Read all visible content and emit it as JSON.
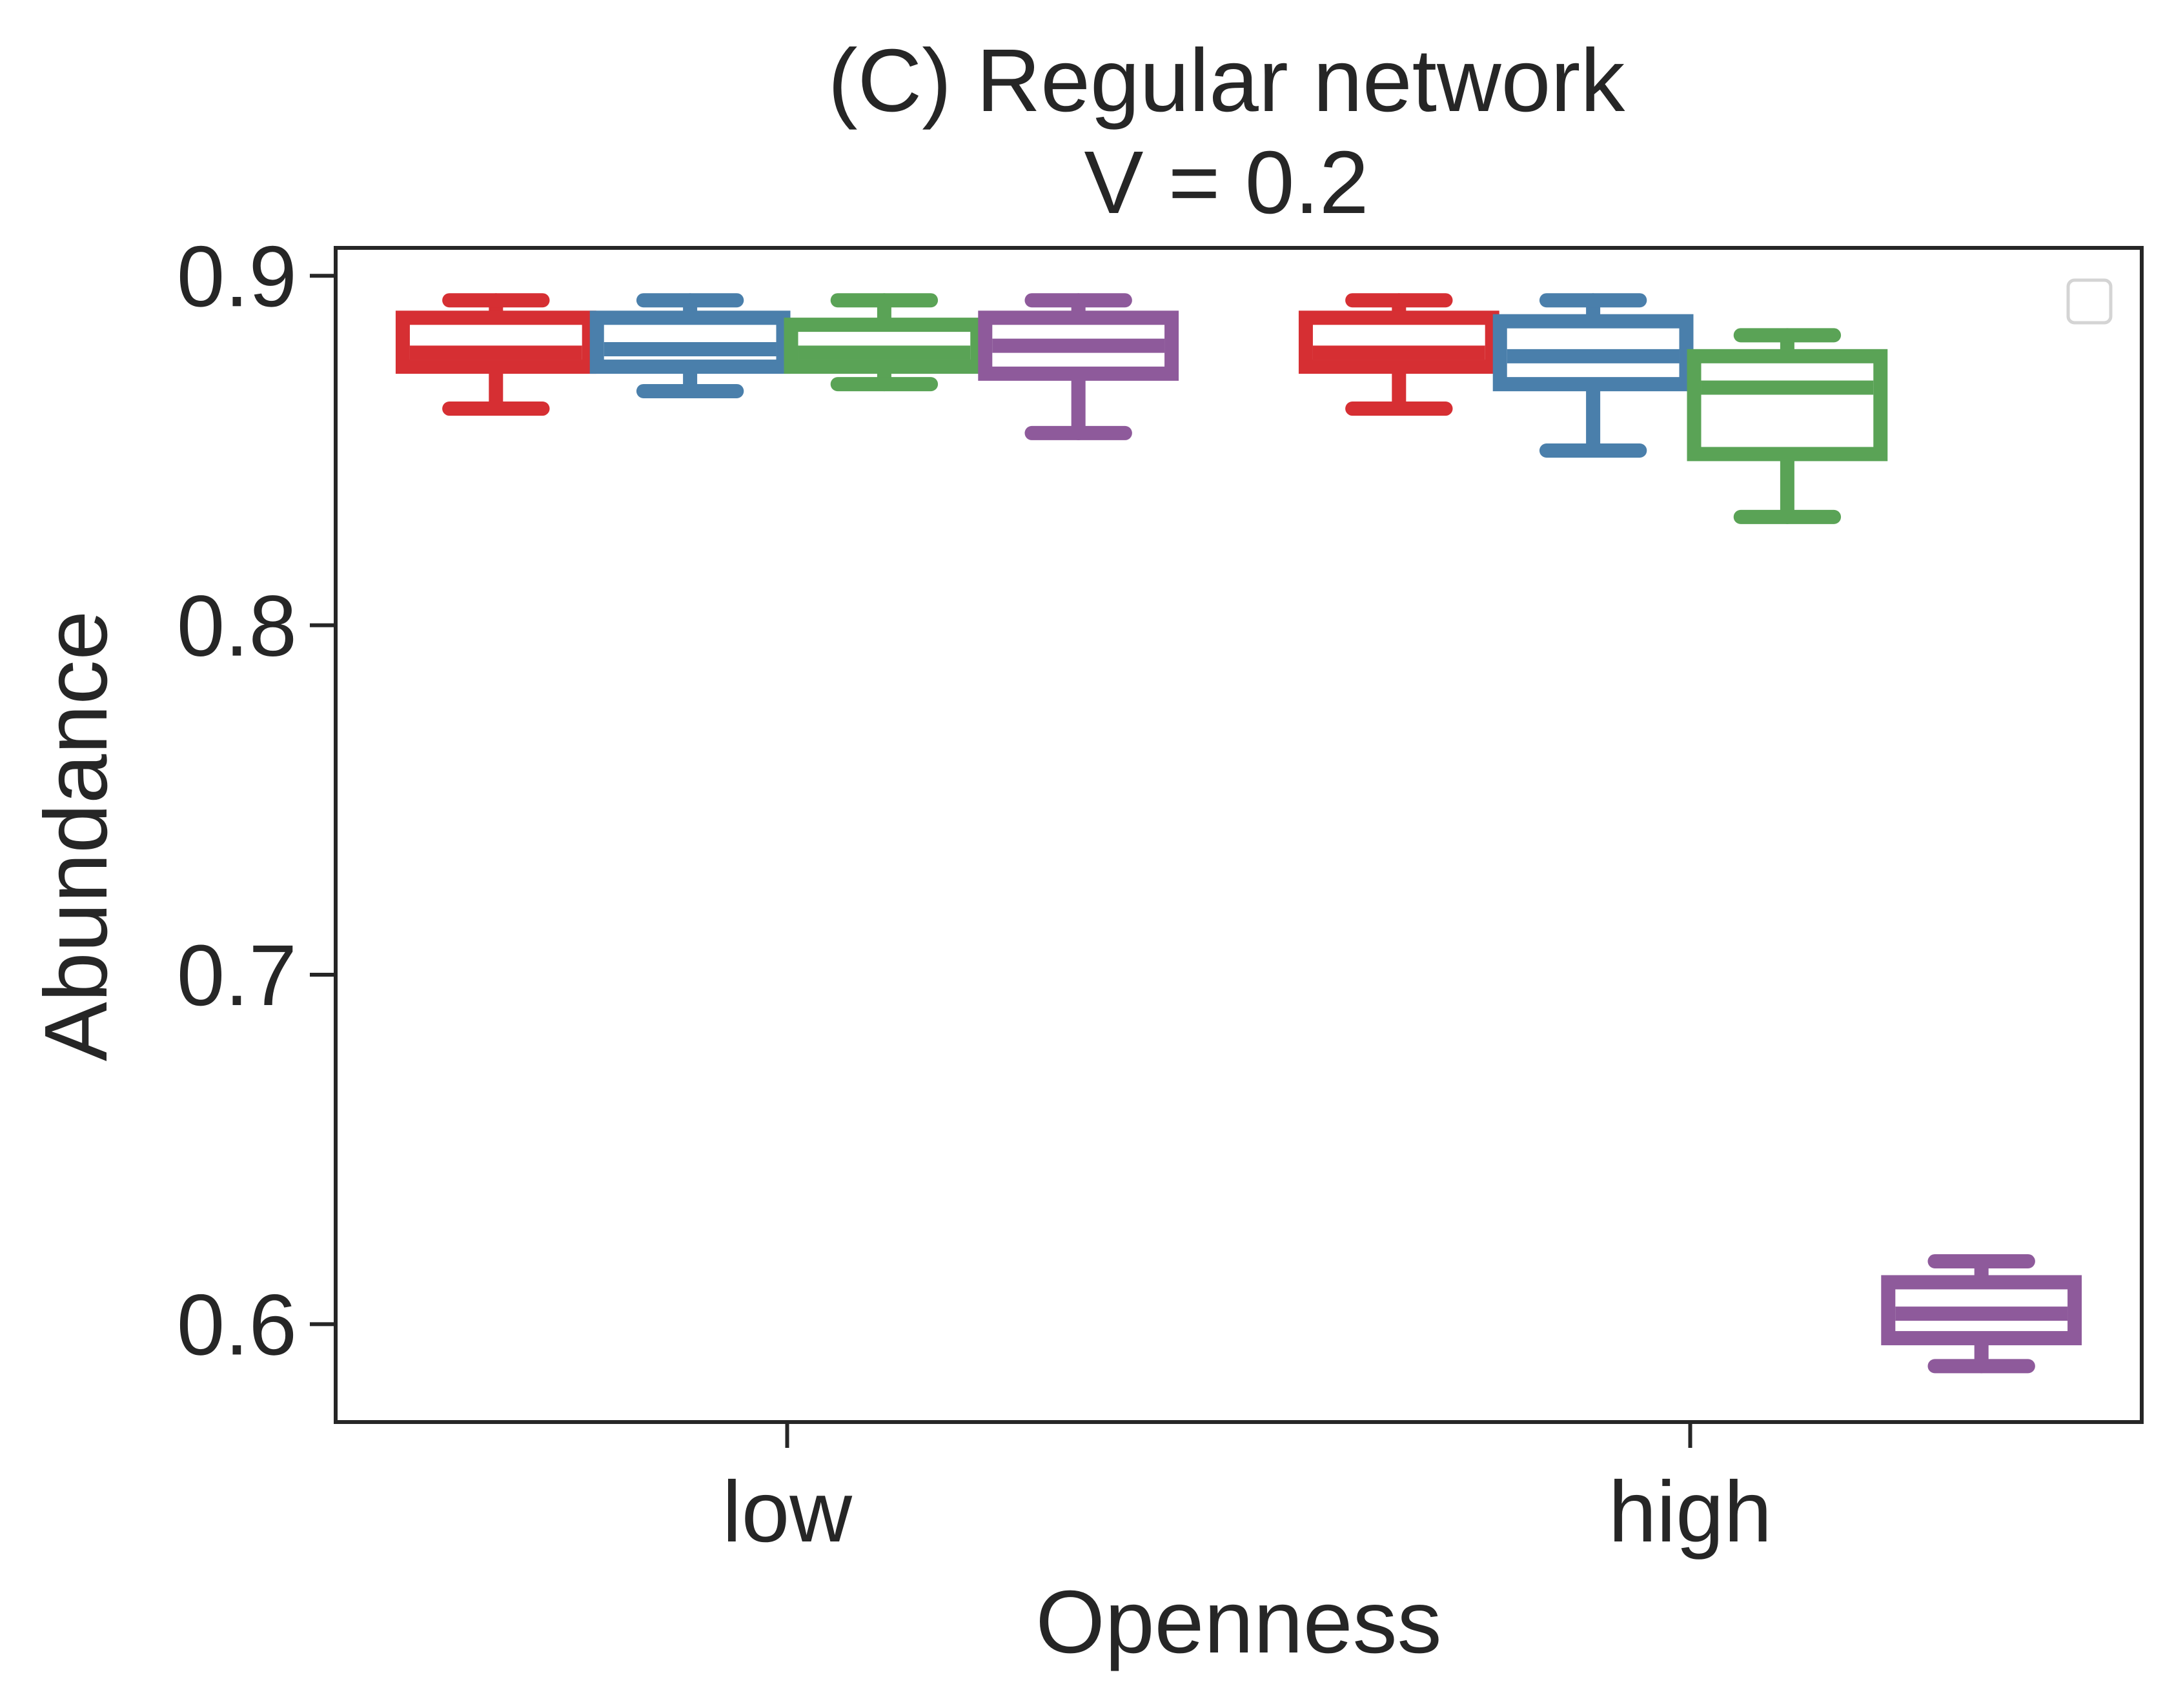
{
  "chart_data": {
    "type": "box",
    "title": "(C) Regular network",
    "subtitle": "V = 0.2",
    "xlabel": "Openness",
    "ylabel": "Abundance",
    "categories": [
      "low",
      "high"
    ],
    "ylim": [
      0.572,
      0.908
    ],
    "yticks": [
      0.6,
      0.7,
      0.8,
      0.9
    ],
    "ytick_labels": [
      "0.6",
      "0.7",
      "0.8",
      "0.9"
    ],
    "grid": false,
    "legend": {
      "position": "top-right",
      "entries": []
    },
    "series": [
      {
        "color": "#d62f33",
        "boxes": [
          {
            "whisker_low": 0.862,
            "q1": 0.874,
            "median": 0.878,
            "q3": 0.888,
            "whisker_high": 0.893
          },
          {
            "whisker_low": 0.862,
            "q1": 0.874,
            "median": 0.878,
            "q3": 0.888,
            "whisker_high": 0.893
          }
        ]
      },
      {
        "color": "#4a7fab",
        "boxes": [
          {
            "whisker_low": 0.867,
            "q1": 0.874,
            "median": 0.879,
            "q3": 0.888,
            "whisker_high": 0.893
          },
          {
            "whisker_low": 0.85,
            "q1": 0.869,
            "median": 0.877,
            "q3": 0.887,
            "whisker_high": 0.893
          }
        ]
      },
      {
        "color": "#5aa356",
        "boxes": [
          {
            "whisker_low": 0.869,
            "q1": 0.874,
            "median": 0.878,
            "q3": 0.886,
            "whisker_high": 0.893
          },
          {
            "whisker_low": 0.831,
            "q1": 0.849,
            "median": 0.868,
            "q3": 0.877,
            "whisker_high": 0.883
          }
        ]
      },
      {
        "color": "#8e5a9b",
        "boxes": [
          {
            "whisker_low": 0.855,
            "q1": 0.872,
            "median": 0.88,
            "q3": 0.888,
            "whisker_high": 0.893
          },
          {
            "whisker_low": 0.588,
            "q1": 0.596,
            "median": 0.603,
            "q3": 0.612,
            "whisker_high": 0.618
          }
        ]
      }
    ]
  }
}
